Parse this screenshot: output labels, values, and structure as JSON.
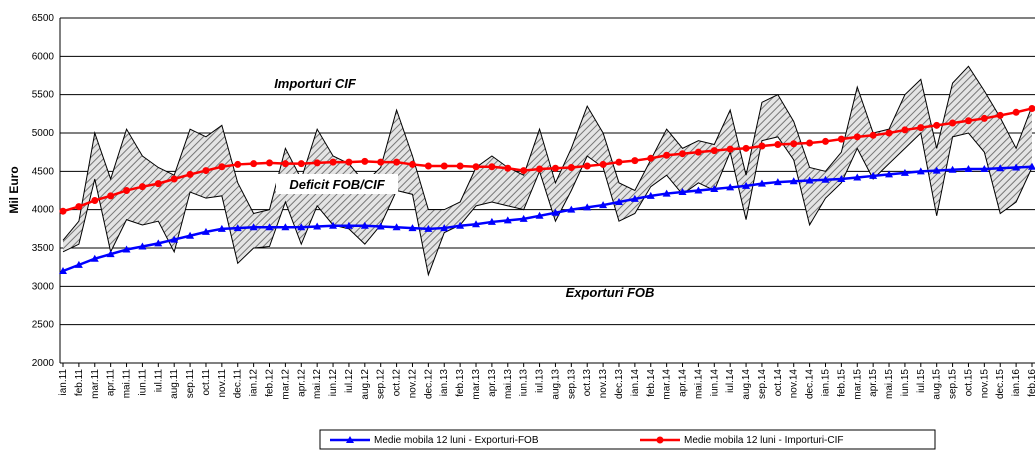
{
  "chart_data": {
    "type": "line",
    "y_label": "Mil Euro",
    "categories": [
      "ian.11",
      "feb.11",
      "mar.11",
      "apr.11",
      "mai.11",
      "iun.11",
      "iul.11",
      "aug.11",
      "sep.11",
      "oct.11",
      "nov.11",
      "dec.11",
      "ian.12",
      "feb.12",
      "mar.12",
      "apr.12",
      "mai.12",
      "iun.12",
      "iul.12",
      "aug.12",
      "sep.12",
      "oct.12",
      "nov.12",
      "dec.12",
      "ian.13",
      "feb.13",
      "mar.13",
      "apr.13",
      "mai.13",
      "iun.13",
      "iul.13",
      "aug.13",
      "sep.13",
      "oct.13",
      "nov.13",
      "dec.13",
      "ian.14",
      "feb.14",
      "mar.14",
      "apr.14",
      "mai.14",
      "iun.14",
      "iul.14",
      "aug.14",
      "sep.14",
      "oct.14",
      "nov.14",
      "dec.14",
      "ian.15",
      "feb.15",
      "mar.15",
      "apr.15",
      "mai.15",
      "iun.15",
      "iul.15",
      "aug.15",
      "sep.15",
      "oct.15",
      "nov.15",
      "dec.15",
      "ian.16",
      "feb.16"
    ],
    "series": [
      {
        "name": "Importuri CIF",
        "color": "#000000",
        "legend": false,
        "values": [
          3600,
          3850,
          5000,
          4400,
          5050,
          4700,
          4550,
          4450,
          5050,
          4950,
          5100,
          4350,
          3950,
          4000,
          4800,
          4400,
          5050,
          4700,
          4600,
          4350,
          4550,
          5300,
          4700,
          4000,
          4000,
          4100,
          4550,
          4700,
          4550,
          4450,
          5050,
          4350,
          4800,
          5350,
          5000,
          4350,
          4250,
          4650,
          5050,
          4800,
          4900,
          4850,
          5300,
          4450,
          5400,
          5500,
          5150,
          4550,
          4500,
          4750,
          5600,
          5000,
          5050,
          5500,
          5700,
          4800,
          5650,
          5870,
          5550,
          5200,
          4800,
          5350
        ]
      },
      {
        "name": "Exporturi FOB",
        "color": "#000000",
        "legend": false,
        "values": [
          3450,
          3550,
          4400,
          3450,
          3870,
          3800,
          3850,
          3450,
          4230,
          4150,
          4180,
          3300,
          3500,
          3520,
          4100,
          3550,
          4050,
          3800,
          3750,
          3550,
          3800,
          4250,
          4200,
          3150,
          3700,
          3800,
          4050,
          4100,
          4050,
          4000,
          4500,
          3850,
          4250,
          4700,
          4550,
          3850,
          3950,
          4300,
          4450,
          4200,
          4350,
          4250,
          4750,
          3870,
          4900,
          4950,
          4650,
          3800,
          4150,
          4350,
          4800,
          4400,
          4600,
          4800,
          5000,
          3920,
          4950,
          5000,
          4750,
          3950,
          4100,
          4550
        ]
      },
      {
        "name": "Medie mobila 12 luni - Exporturi-FOB",
        "color": "#0000ff",
        "marker": "triangle",
        "values": [
          3200,
          3280,
          3360,
          3420,
          3480,
          3520,
          3560,
          3610,
          3660,
          3710,
          3750,
          3760,
          3770,
          3770,
          3770,
          3770,
          3780,
          3790,
          3790,
          3790,
          3780,
          3770,
          3760,
          3750,
          3760,
          3790,
          3810,
          3840,
          3860,
          3880,
          3920,
          3960,
          4000,
          4030,
          4060,
          4100,
          4140,
          4180,
          4210,
          4230,
          4250,
          4270,
          4290,
          4310,
          4340,
          4360,
          4370,
          4380,
          4390,
          4400,
          4420,
          4440,
          4460,
          4480,
          4500,
          4510,
          4520,
          4530,
          4530,
          4540,
          4550,
          4560
        ]
      },
      {
        "name": "Medie mobila 12 luni - Importuri-CIF",
        "color": "#ff0000",
        "marker": "circle",
        "values": [
          3980,
          4040,
          4120,
          4180,
          4250,
          4300,
          4340,
          4400,
          4460,
          4510,
          4560,
          4590,
          4600,
          4610,
          4600,
          4600,
          4610,
          4620,
          4620,
          4630,
          4620,
          4620,
          4590,
          4570,
          4570,
          4570,
          4560,
          4560,
          4540,
          4510,
          4530,
          4540,
          4550,
          4570,
          4590,
          4620,
          4640,
          4670,
          4710,
          4730,
          4750,
          4770,
          4790,
          4800,
          4830,
          4850,
          4860,
          4870,
          4890,
          4920,
          4950,
          4970,
          5000,
          5040,
          5070,
          5100,
          5130,
          5160,
          5190,
          5230,
          5270,
          5320
        ]
      }
    ],
    "annotations": [
      "Deficit FOB/CIF"
    ],
    "hatch": true,
    "ylim": [
      2000,
      6500
    ],
    "yticks": [
      2000,
      2500,
      3000,
      3500,
      4000,
      4500,
      5000,
      5500,
      6000,
      6500
    ],
    "grid": true
  }
}
